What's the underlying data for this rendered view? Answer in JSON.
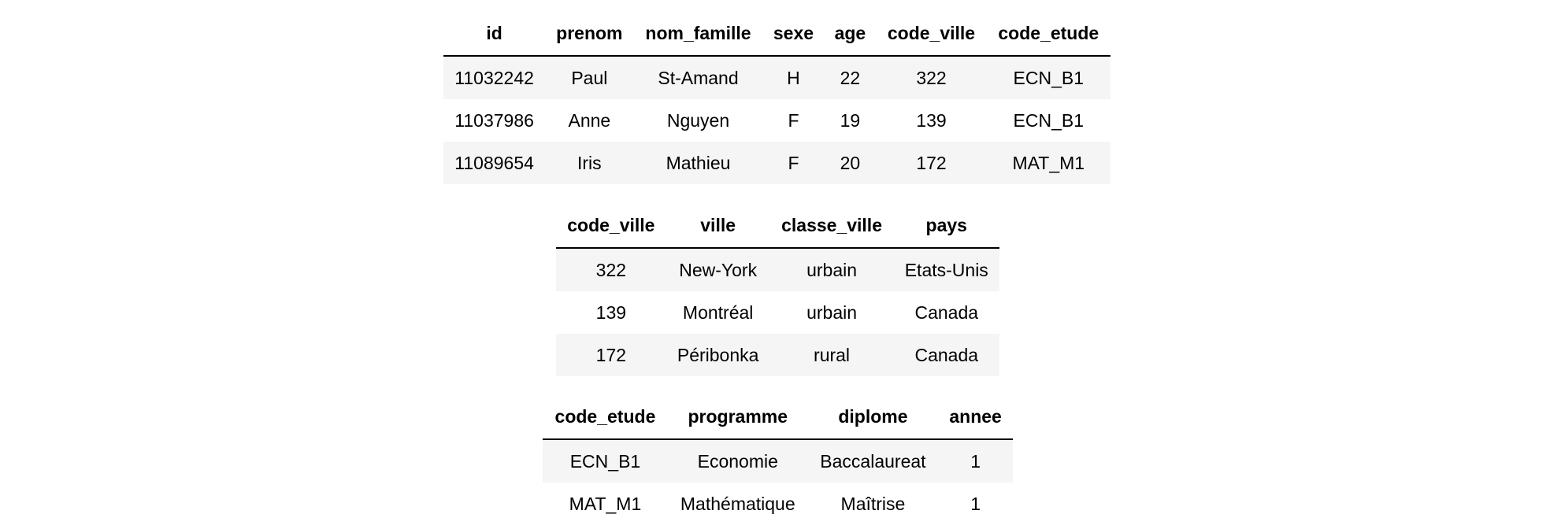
{
  "etudiants": {
    "headers": [
      "id",
      "prenom",
      "nom_famille",
      "sexe",
      "age",
      "code_ville",
      "code_etude"
    ],
    "rows": [
      [
        "11032242",
        "Paul",
        "St-Amand",
        "H",
        "22",
        "322",
        "ECN_B1"
      ],
      [
        "11037986",
        "Anne",
        "Nguyen",
        "F",
        "19",
        "139",
        "ECN_B1"
      ],
      [
        "11089654",
        "Iris",
        "Mathieu",
        "F",
        "20",
        "172",
        "MAT_M1"
      ]
    ]
  },
  "villes": {
    "headers": [
      "code_ville",
      "ville",
      "classe_ville",
      "pays"
    ],
    "rows": [
      [
        "322",
        "New-York",
        "urbain",
        "Etats-Unis"
      ],
      [
        "139",
        "Montréal",
        "urbain",
        "Canada"
      ],
      [
        "172",
        "Péribonka",
        "rural",
        "Canada"
      ]
    ]
  },
  "etudes": {
    "headers": [
      "code_etude",
      "programme",
      "diplome",
      "annee"
    ],
    "rows": [
      [
        "ECN_B1",
        "Economie",
        "Baccalaureat",
        "1"
      ],
      [
        "MAT_M1",
        "Mathématique",
        "Maîtrise",
        "1"
      ]
    ]
  }
}
